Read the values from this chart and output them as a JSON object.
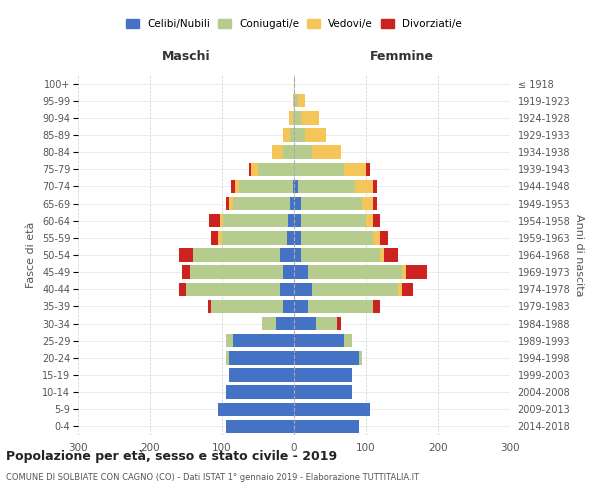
{
  "age_groups": [
    "0-4",
    "5-9",
    "10-14",
    "15-19",
    "20-24",
    "25-29",
    "30-34",
    "35-39",
    "40-44",
    "45-49",
    "50-54",
    "55-59",
    "60-64",
    "65-69",
    "70-74",
    "75-79",
    "80-84",
    "85-89",
    "90-94",
    "95-99",
    "100+"
  ],
  "birth_years": [
    "2014-2018",
    "2009-2013",
    "2004-2008",
    "1999-2003",
    "1994-1998",
    "1989-1993",
    "1984-1988",
    "1979-1983",
    "1974-1978",
    "1969-1973",
    "1964-1968",
    "1959-1963",
    "1954-1958",
    "1949-1953",
    "1944-1948",
    "1939-1943",
    "1934-1938",
    "1929-1933",
    "1924-1928",
    "1919-1923",
    "≤ 1918"
  ],
  "males": {
    "celibi": [
      95,
      105,
      95,
      90,
      90,
      85,
      25,
      15,
      20,
      15,
      20,
      10,
      8,
      5,
      2,
      0,
      0,
      0,
      0,
      0,
      0
    ],
    "coniugati": [
      0,
      0,
      0,
      0,
      5,
      10,
      20,
      100,
      130,
      130,
      120,
      90,
      90,
      80,
      75,
      50,
      15,
      5,
      2,
      0,
      0
    ],
    "vedovi": [
      0,
      0,
      0,
      0,
      0,
      0,
      0,
      0,
      0,
      0,
      0,
      5,
      5,
      5,
      5,
      10,
      15,
      10,
      5,
      2,
      0
    ],
    "divorziati": [
      0,
      0,
      0,
      0,
      0,
      0,
      0,
      5,
      10,
      10,
      20,
      10,
      15,
      5,
      5,
      2,
      0,
      0,
      0,
      0,
      0
    ]
  },
  "females": {
    "nubili": [
      90,
      105,
      80,
      80,
      90,
      70,
      30,
      20,
      25,
      20,
      10,
      10,
      10,
      10,
      5,
      0,
      0,
      0,
      0,
      0,
      0
    ],
    "coniugate": [
      0,
      0,
      0,
      0,
      5,
      10,
      30,
      90,
      120,
      130,
      110,
      100,
      90,
      85,
      80,
      70,
      25,
      15,
      10,
      5,
      0
    ],
    "vedove": [
      0,
      0,
      0,
      0,
      0,
      0,
      0,
      0,
      5,
      5,
      5,
      10,
      10,
      15,
      25,
      30,
      40,
      30,
      25,
      10,
      2
    ],
    "divorziate": [
      0,
      0,
      0,
      0,
      0,
      0,
      5,
      10,
      15,
      30,
      20,
      10,
      10,
      5,
      5,
      5,
      0,
      0,
      0,
      0,
      0
    ]
  },
  "colors": {
    "celibi": "#4472c4",
    "coniugati": "#b5cc8e",
    "vedovi": "#f5c55a",
    "divorziati": "#cc2222"
  },
  "title": "Popolazione per età, sesso e stato civile - 2019",
  "subtitle": "COMUNE DI SOLBIATE CON CAGNO (CO) - Dati ISTAT 1° gennaio 2019 - Elaborazione TUTTITALIA.IT",
  "ylabel": "Fasce di età",
  "ylabel_right": "Anni di nascita",
  "xlabel_left": "Maschi",
  "xlabel_right": "Femmine",
  "xlim": 300,
  "background_color": "#ffffff",
  "grid_color": "#cccccc"
}
